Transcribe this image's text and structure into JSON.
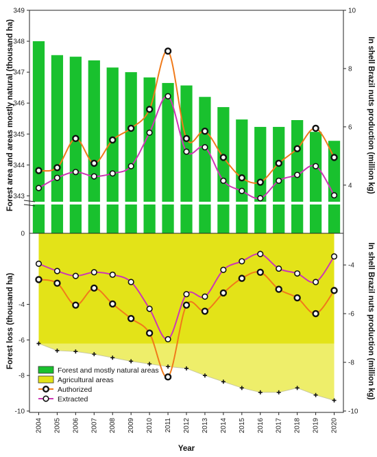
{
  "chart_data": {
    "years": [
      "2004",
      "2005",
      "2006",
      "2007",
      "2008",
      "2009",
      "2010",
      "2011",
      "2012",
      "2013",
      "2014",
      "2015",
      "2016",
      "2017",
      "2018",
      "2019",
      "2020"
    ],
    "x_title": "Year",
    "top": {
      "type": "bar+line",
      "y_left_title": "Forest area and areas mostly natural (thousand ha)",
      "y_right_title": "In shell Brazil nuts production (million kg)",
      "y_left_ticks": [
        "343",
        "344",
        "345",
        "346",
        "347",
        "348",
        "349"
      ],
      "y_right_ticks": [
        "4",
        "6",
        "8",
        "10"
      ],
      "ylim_left": [
        342.5,
        349
      ],
      "ylim_right": [
        3.1,
        10
      ],
      "colors": {
        "bar": "#19c12e",
        "authorized": "#f07a1a",
        "extracted": "#cc37b4"
      },
      "bars": [
        348.0,
        347.55,
        347.5,
        347.38,
        347.15,
        347.0,
        346.83,
        346.65,
        346.57,
        346.2,
        345.87,
        345.47,
        345.23,
        345.23,
        345.45,
        345.07,
        344.78
      ],
      "authorized": [
        4.5,
        4.6,
        5.6,
        4.75,
        5.55,
        5.95,
        6.6,
        8.6,
        5.6,
        5.85,
        4.95,
        4.25,
        4.1,
        4.75,
        5.25,
        5.95,
        4.95
      ],
      "extracted": [
        3.9,
        4.25,
        4.45,
        4.3,
        4.4,
        4.65,
        5.8,
        7.05,
        5.15,
        5.3,
        4.15,
        3.8,
        3.55,
        4.15,
        4.35,
        4.65,
        3.65
      ]
    },
    "bottom": {
      "type": "area+line",
      "y_left_title": "Forest loss (thousand ha)",
      "y_right_title": "In shell Brazil nuts production  (million kg)",
      "y_left_ticks": [
        "-10",
        "-8",
        "-6",
        "-4"
      ],
      "y_right_ticks": [
        "-10",
        "-8",
        "-6",
        "-4"
      ],
      "ylim_left": [
        -10,
        0
      ],
      "ylim_right": [
        -10,
        -2.7
      ],
      "colors": {
        "area": "#e3e318",
        "authorized": "#f07a1a",
        "extracted": "#cc37b4"
      },
      "agricultural_areas": [
        -6.2,
        -6.6,
        -6.65,
        -6.8,
        -7.0,
        -7.2,
        -7.35,
        -7.5,
        -7.6,
        -8.0,
        -8.35,
        -8.7,
        -8.95,
        -8.95,
        -8.7,
        -9.1,
        -9.4
      ],
      "authorized": [
        -4.6,
        -4.75,
        -5.65,
        -4.95,
        -5.6,
        -6.2,
        -6.8,
        -8.6,
        -5.65,
        -5.9,
        -5.15,
        -4.55,
        -4.3,
        -5.0,
        -5.35,
        -6.0,
        -5.05
      ],
      "extracted": [
        -3.95,
        -4.25,
        -4.45,
        -4.3,
        -4.4,
        -4.7,
        -5.8,
        -7.05,
        -5.2,
        -5.3,
        -4.2,
        -3.85,
        -3.55,
        -4.15,
        -4.35,
        -4.7,
        -3.65
      ]
    },
    "legend": [
      "Forest and mostly natural areas",
      "Agricultural areas",
      "Authorized",
      "Extracted"
    ]
  }
}
